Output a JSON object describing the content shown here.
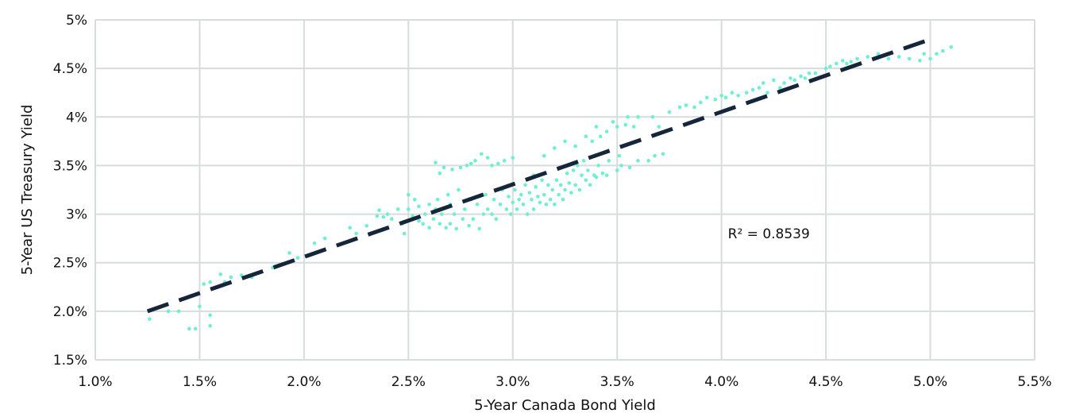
{
  "chart_data": {
    "type": "scatter",
    "xlabel": "5-Year Canada Bond Yield",
    "ylabel": "5-Year US Treasury Yield",
    "xlim": [
      1.0,
      5.5
    ],
    "ylim": [
      1.5,
      5.0
    ],
    "x_ticks": [
      1.0,
      1.5,
      2.0,
      2.5,
      3.0,
      3.5,
      4.0,
      4.5,
      5.0,
      5.5
    ],
    "x_tick_labels": [
      "1.0%",
      "1.5%",
      "2.0%",
      "2.5%",
      "3.0%",
      "3.5%",
      "4.0%",
      "4.5%",
      "5.0%",
      "5.5%"
    ],
    "y_ticks": [
      1.5,
      2.0,
      2.5,
      3.0,
      3.5,
      4.0,
      4.5,
      5.0
    ],
    "y_tick_labels": [
      "1.5%",
      "2.0%",
      "2.5%",
      "3%",
      "3.5%",
      "4%",
      "4.5%",
      "5%"
    ],
    "grid": true,
    "point_color": "#6ef0d0",
    "trend_color": "#16263a",
    "annotation": {
      "text": "R² = 0.8539",
      "x": 4.0,
      "y": 2.8
    },
    "trendline": {
      "x": [
        1.25,
        5.0
      ],
      "y": [
        2.0,
        4.8
      ]
    },
    "points": [
      [
        1.26,
        1.92
      ],
      [
        1.35,
        2.0
      ],
      [
        1.4,
        2.0
      ],
      [
        1.45,
        1.82
      ],
      [
        1.48,
        1.82
      ],
      [
        1.5,
        2.05
      ],
      [
        1.52,
        2.28
      ],
      [
        1.55,
        1.85
      ],
      [
        1.55,
        1.96
      ],
      [
        1.55,
        2.3
      ],
      [
        1.6,
        2.38
      ],
      [
        1.62,
        2.3
      ],
      [
        1.65,
        2.35
      ],
      [
        1.7,
        2.37
      ],
      [
        1.75,
        2.35
      ],
      [
        1.85,
        2.45
      ],
      [
        1.93,
        2.6
      ],
      [
        1.97,
        2.55
      ],
      [
        2.05,
        2.7
      ],
      [
        2.1,
        2.75
      ],
      [
        2.22,
        2.86
      ],
      [
        2.25,
        2.8
      ],
      [
        2.3,
        2.88
      ],
      [
        2.35,
        2.98
      ],
      [
        2.36,
        3.04
      ],
      [
        2.38,
        2.97
      ],
      [
        2.4,
        3.0
      ],
      [
        2.42,
        2.95
      ],
      [
        2.45,
        3.05
      ],
      [
        2.47,
        2.9
      ],
      [
        2.48,
        2.8
      ],
      [
        2.5,
        3.2
      ],
      [
        2.5,
        3.05
      ],
      [
        2.52,
        2.98
      ],
      [
        2.53,
        3.15
      ],
      [
        2.55,
        2.93
      ],
      [
        2.55,
        3.08
      ],
      [
        2.57,
        2.9
      ],
      [
        2.58,
        3.0
      ],
      [
        2.6,
        2.86
      ],
      [
        2.6,
        3.1
      ],
      [
        2.62,
        2.95
      ],
      [
        2.63,
        3.05
      ],
      [
        2.63,
        3.53
      ],
      [
        2.64,
        3.15
      ],
      [
        2.65,
        2.9
      ],
      [
        2.65,
        3.42
      ],
      [
        2.66,
        3.0
      ],
      [
        2.67,
        3.48
      ],
      [
        2.68,
        2.86
      ],
      [
        2.69,
        3.2
      ],
      [
        2.7,
        3.1
      ],
      [
        2.7,
        2.9
      ],
      [
        2.71,
        3.46
      ],
      [
        2.72,
        3.0
      ],
      [
        2.73,
        2.85
      ],
      [
        2.74,
        3.25
      ],
      [
        2.75,
        3.48
      ],
      [
        2.76,
        2.95
      ],
      [
        2.77,
        3.05
      ],
      [
        2.78,
        3.5
      ],
      [
        2.79,
        2.88
      ],
      [
        2.8,
        3.52
      ],
      [
        2.8,
        3.15
      ],
      [
        2.81,
        2.95
      ],
      [
        2.82,
        3.55
      ],
      [
        2.83,
        3.1
      ],
      [
        2.84,
        2.85
      ],
      [
        2.85,
        3.62
      ],
      [
        2.86,
        3.0
      ],
      [
        2.87,
        3.2
      ],
      [
        2.88,
        3.58
      ],
      [
        2.88,
        3.05
      ],
      [
        2.9,
        3.5
      ],
      [
        2.9,
        3.0
      ],
      [
        2.91,
        3.15
      ],
      [
        2.92,
        2.95
      ],
      [
        2.93,
        3.52
      ],
      [
        2.94,
        3.1
      ],
      [
        2.95,
        3.25
      ],
      [
        2.96,
        3.55
      ],
      [
        2.97,
        3.05
      ],
      [
        2.98,
        3.18
      ],
      [
        2.99,
        3.0
      ],
      [
        3.0,
        3.58
      ],
      [
        3.0,
        3.12
      ],
      [
        3.01,
        3.25
      ],
      [
        3.02,
        3.05
      ],
      [
        3.03,
        3.15
      ],
      [
        3.04,
        3.2
      ],
      [
        3.05,
        3.1
      ],
      [
        3.06,
        3.3
      ],
      [
        3.07,
        3.0
      ],
      [
        3.08,
        3.22
      ],
      [
        3.09,
        3.15
      ],
      [
        3.1,
        3.4
      ],
      [
        3.1,
        3.05
      ],
      [
        3.11,
        3.28
      ],
      [
        3.12,
        3.18
      ],
      [
        3.13,
        3.12
      ],
      [
        3.14,
        3.35
      ],
      [
        3.15,
        3.6
      ],
      [
        3.15,
        3.2
      ],
      [
        3.16,
        3.1
      ],
      [
        3.17,
        3.3
      ],
      [
        3.18,
        3.15
      ],
      [
        3.19,
        3.25
      ],
      [
        3.2,
        3.68
      ],
      [
        3.2,
        3.1
      ],
      [
        3.21,
        3.35
      ],
      [
        3.22,
        3.2
      ],
      [
        3.23,
        3.3
      ],
      [
        3.24,
        3.15
      ],
      [
        3.25,
        3.75
      ],
      [
        3.25,
        3.25
      ],
      [
        3.26,
        3.42
      ],
      [
        3.27,
        3.32
      ],
      [
        3.28,
        3.22
      ],
      [
        3.29,
        3.45
      ],
      [
        3.3,
        3.7
      ],
      [
        3.3,
        3.3
      ],
      [
        3.31,
        3.5
      ],
      [
        3.32,
        3.25
      ],
      [
        3.33,
        3.4
      ],
      [
        3.34,
        3.55
      ],
      [
        3.35,
        3.8
      ],
      [
        3.35,
        3.35
      ],
      [
        3.36,
        3.45
      ],
      [
        3.37,
        3.3
      ],
      [
        3.38,
        3.75
      ],
      [
        3.39,
        3.4
      ],
      [
        3.4,
        3.9
      ],
      [
        3.4,
        3.38
      ],
      [
        3.41,
        3.5
      ],
      [
        3.42,
        3.8
      ],
      [
        3.43,
        3.42
      ],
      [
        3.45,
        3.85
      ],
      [
        3.45,
        3.4
      ],
      [
        3.46,
        3.55
      ],
      [
        3.48,
        3.95
      ],
      [
        3.5,
        3.9
      ],
      [
        3.5,
        3.45
      ],
      [
        3.51,
        3.6
      ],
      [
        3.52,
        3.5
      ],
      [
        3.54,
        3.92
      ],
      [
        3.55,
        4.0
      ],
      [
        3.56,
        3.48
      ],
      [
        3.58,
        3.9
      ],
      [
        3.6,
        4.0
      ],
      [
        3.6,
        3.55
      ],
      [
        3.65,
        3.55
      ],
      [
        3.67,
        4.0
      ],
      [
        3.68,
        3.6
      ],
      [
        3.7,
        3.9
      ],
      [
        3.72,
        3.62
      ],
      [
        3.75,
        4.05
      ],
      [
        3.8,
        4.1
      ],
      [
        3.83,
        4.12
      ],
      [
        3.87,
        4.1
      ],
      [
        3.9,
        4.15
      ],
      [
        3.93,
        4.2
      ],
      [
        3.97,
        4.18
      ],
      [
        4.0,
        4.22
      ],
      [
        4.02,
        4.2
      ],
      [
        4.05,
        4.25
      ],
      [
        4.08,
        4.22
      ],
      [
        4.12,
        4.25
      ],
      [
        4.15,
        4.28
      ],
      [
        4.18,
        4.3
      ],
      [
        4.2,
        4.35
      ],
      [
        4.22,
        4.25
      ],
      [
        4.25,
        4.38
      ],
      [
        4.28,
        4.3
      ],
      [
        4.3,
        4.35
      ],
      [
        4.33,
        4.4
      ],
      [
        4.35,
        4.38
      ],
      [
        4.38,
        4.42
      ],
      [
        4.4,
        4.4
      ],
      [
        4.42,
        4.45
      ],
      [
        4.45,
        4.45
      ],
      [
        4.5,
        4.5
      ],
      [
        4.52,
        4.52
      ],
      [
        4.55,
        4.55
      ],
      [
        4.58,
        4.58
      ],
      [
        4.6,
        4.55
      ],
      [
        4.62,
        4.57
      ],
      [
        4.65,
        4.6
      ],
      [
        4.7,
        4.62
      ],
      [
        4.75,
        4.65
      ],
      [
        4.8,
        4.6
      ],
      [
        4.85,
        4.62
      ],
      [
        4.9,
        4.6
      ],
      [
        4.95,
        4.58
      ],
      [
        4.97,
        4.65
      ],
      [
        5.0,
        4.6
      ],
      [
        5.03,
        4.65
      ],
      [
        5.06,
        4.68
      ],
      [
        5.1,
        4.72
      ]
    ]
  }
}
